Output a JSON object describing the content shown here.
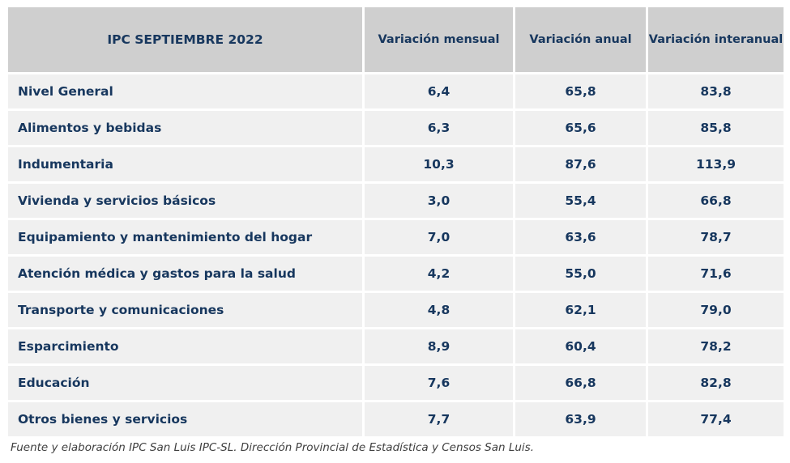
{
  "chart_data": {
    "type": "table",
    "columns": [
      "IPC SEPTIEMBRE 2022",
      "Variación mensual",
      "Variación anual",
      "Variación interanual"
    ],
    "rows": [
      {
        "category": "Nivel General",
        "mensual": "6,4",
        "anual": "65,8",
        "interanual": "83,8"
      },
      {
        "category": "Alimentos y bebidas",
        "mensual": "6,3",
        "anual": "65,6",
        "interanual": "85,8"
      },
      {
        "category": "Indumentaria",
        "mensual": "10,3",
        "anual": "87,6",
        "interanual": "113,9"
      },
      {
        "category": "Vivienda y servicios básicos",
        "mensual": "3,0",
        "anual": "55,4",
        "interanual": "66,8"
      },
      {
        "category": "Equipamiento y mantenimiento del hogar",
        "mensual": "7,0",
        "anual": "63,6",
        "interanual": "78,7"
      },
      {
        "category": "Atención médica y gastos para la salud",
        "mensual": "4,2",
        "anual": "55,0",
        "interanual": "71,6"
      },
      {
        "category": "Transporte y comunicaciones",
        "mensual": "4,8",
        "anual": "62,1",
        "interanual": "79,0"
      },
      {
        "category": "Esparcimiento",
        "mensual": "8,9",
        "anual": "60,4",
        "interanual": "78,2"
      },
      {
        "category": "Educación",
        "mensual": "7,6",
        "anual": "66,8",
        "interanual": "82,8"
      },
      {
        "category": "Otros bienes y servicios",
        "mensual": "7,7",
        "anual": "63,9",
        "interanual": "77,4"
      }
    ]
  },
  "footnote": "Fuente y elaboración IPC San Luis IPC-SL. Dirección Provincial de Estadística y Censos San Luis.",
  "colors": {
    "header_bg": "#cfcfcf",
    "cell_bg": "#f0f0f0",
    "text": "#17375e"
  }
}
